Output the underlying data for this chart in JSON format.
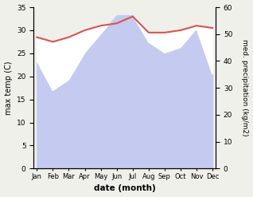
{
  "months": [
    "Jan",
    "Feb",
    "Mar",
    "Apr",
    "May",
    "Jun",
    "Jul",
    "Aug",
    "Sep",
    "Oct",
    "Nov",
    "Dec"
  ],
  "month_indices": [
    0,
    1,
    2,
    3,
    4,
    5,
    6,
    7,
    8,
    9,
    10,
    11
  ],
  "temperature": [
    28.5,
    27.5,
    28.5,
    30.0,
    31.0,
    31.5,
    33.0,
    29.5,
    29.5,
    30.0,
    31.0,
    30.5
  ],
  "precipitation": [
    40,
    29,
    33,
    43,
    50,
    57,
    57,
    47,
    43,
    45,
    52,
    35
  ],
  "temp_color": "#d9534f",
  "precip_fill_color": "#c5caf0",
  "temp_ylim": [
    0,
    35
  ],
  "precip_ylim": [
    0,
    60
  ],
  "temp_yticks": [
    0,
    5,
    10,
    15,
    20,
    25,
    30,
    35
  ],
  "precip_yticks": [
    0,
    10,
    20,
    30,
    40,
    50,
    60
  ],
  "xlabel": "date (month)",
  "ylabel_left": "max temp (C)",
  "ylabel_right": "med. precipitation (kg/m2)",
  "bg_color": "#f0f0eb"
}
